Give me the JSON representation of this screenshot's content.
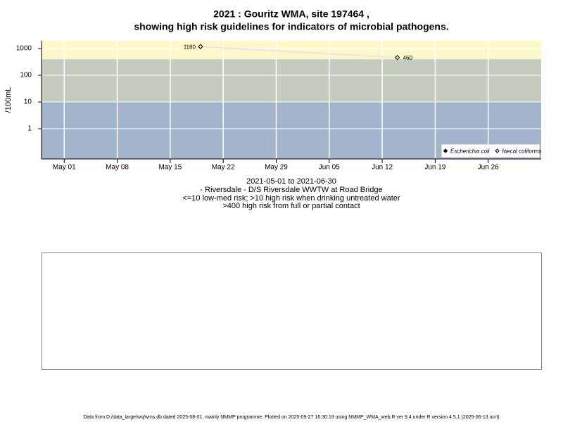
{
  "chart_data": {
    "type": "line",
    "title": [
      "2021 : Gouritz WMA, site 197464 ,",
      "showing high risk guidelines for indicators of microbial pathogens."
    ],
    "y_label": "/100mL",
    "subtitle": [
      "2021-05-01 to 2021-06-30",
      "- Riversdale - D/S Riversdale WWTW at Road Bridge",
      "<=10 low-med risk; >10 high risk when drinking untreated water",
      ">400 high risk from full or partial contact"
    ],
    "x": [
      "2021-05-19",
      "2021-06-14"
    ],
    "series": [
      {
        "name": "Escherichia coli",
        "color": "#000000",
        "values": [
          null,
          null
        ]
      },
      {
        "name": "faecal coliforms",
        "color": "#000000",
        "values": [
          1180,
          460
        ]
      }
    ],
    "line_color": "#e6e6e6",
    "log_y": true,
    "ylim": [
      0.074,
      1950
    ],
    "yticks": [
      1,
      10,
      100,
      1000
    ],
    "xlim": [
      "2021-04-28",
      "2021-07-03"
    ],
    "xticks": [
      {
        "value": "2021-05-01",
        "label": "May 01"
      },
      {
        "value": "2021-05-08",
        "label": "May 08"
      },
      {
        "value": "2021-05-15",
        "label": "May 15"
      },
      {
        "value": "2021-05-22",
        "label": "May 22"
      },
      {
        "value": "2021-05-29",
        "label": "May 29"
      },
      {
        "value": "2021-06-05",
        "label": "Jun 05"
      },
      {
        "value": "2021-06-12",
        "label": "Jun 12"
      },
      {
        "value": "2021-06-19",
        "label": "Jun 19"
      },
      {
        "value": "2021-06-26",
        "label": "Jun 26"
      }
    ],
    "thresholds": [
      10,
      400
    ],
    "band_colors": [
      "#a2b3cc",
      "#c4ccc0",
      "#fdf8c9"
    ],
    "grid": true,
    "legend": "bottom-right"
  },
  "footer": "Data from D:/data_large/wq/wms.db dated 2025-08-01, mainly NMMP programme. Plotted on 2025-09-27 16:30:19 using NMMP_WMA_web.R ver 9.4 under R version 4.5.1 (2025-06-13 ucrt)"
}
